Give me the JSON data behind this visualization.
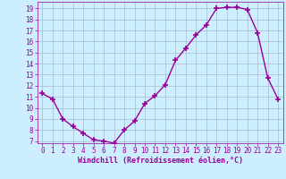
{
  "x": [
    0,
    1,
    2,
    3,
    4,
    5,
    6,
    7,
    8,
    9,
    10,
    11,
    12,
    13,
    14,
    15,
    16,
    17,
    18,
    19,
    20,
    21,
    22,
    23
  ],
  "y": [
    11.3,
    10.8,
    9.0,
    8.3,
    7.7,
    7.1,
    7.0,
    6.8,
    8.0,
    8.8,
    10.4,
    11.1,
    12.1,
    14.3,
    15.4,
    16.6,
    17.5,
    19.0,
    19.1,
    19.1,
    18.9,
    16.8,
    12.7,
    10.8
  ],
  "line_color": "#990099",
  "marker": "+",
  "marker_size": 4,
  "marker_lw": 1.2,
  "background_color": "#cceeff",
  "grid_color": "#aabbcc",
  "xlabel": "Windchill (Refroidissement éolien,°C)",
  "ylabel": "",
  "xlim": [
    -0.5,
    23.5
  ],
  "ylim": [
    6.8,
    19.6
  ],
  "yticks": [
    7,
    8,
    9,
    10,
    11,
    12,
    13,
    14,
    15,
    16,
    17,
    18,
    19
  ],
  "xticks": [
    0,
    1,
    2,
    3,
    4,
    5,
    6,
    7,
    8,
    9,
    10,
    11,
    12,
    13,
    14,
    15,
    16,
    17,
    18,
    19,
    20,
    21,
    22,
    23
  ],
  "tick_label_fontsize": 5.5,
  "xlabel_fontsize": 6.0,
  "line_width": 1.0
}
